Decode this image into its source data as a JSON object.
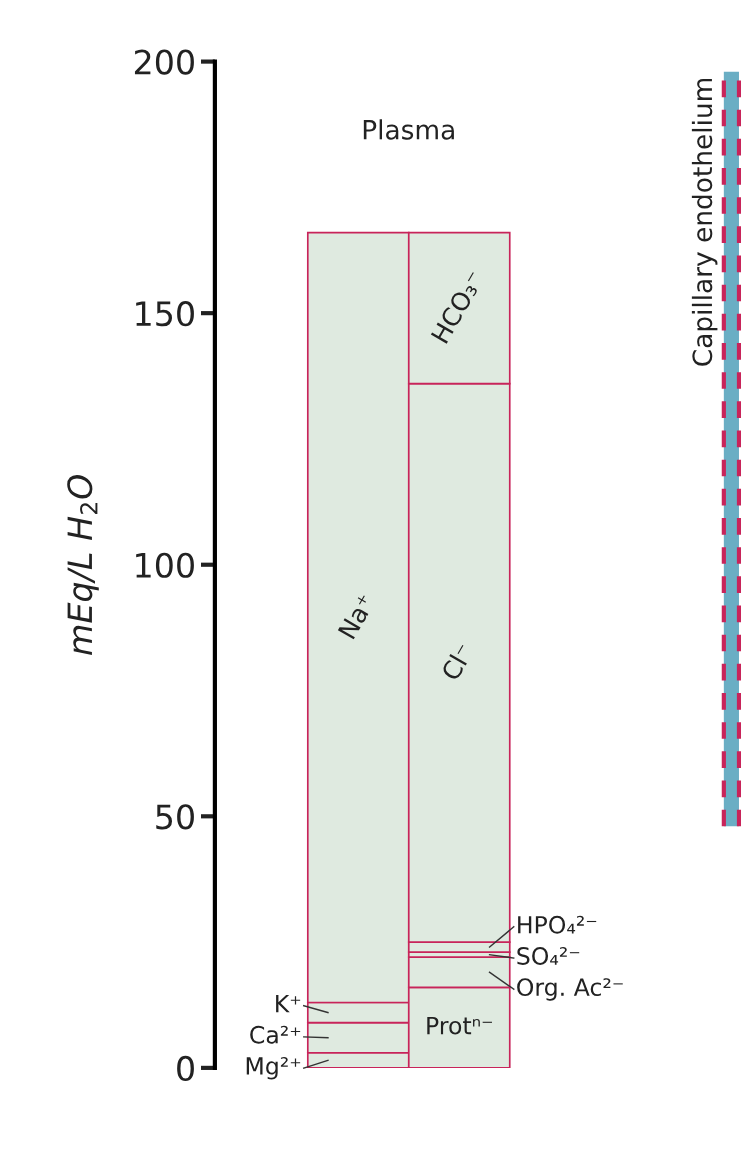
{
  "chart_data": {
    "type": "bar",
    "stacked": true,
    "title": "Plasma",
    "ylabel": "mEq/L H$_{2}$O",
    "categories": [
      null,
      null
    ],
    "series": [
      {
        "name": "Mg²⁺",
        "color": "#dfeae0",
        "values": [
          3,
          null
        ]
      },
      {
        "name": "Ca²⁺",
        "color": "#dfeae0",
        "values": [
          6,
          null
        ]
      },
      {
        "name": "K⁺",
        "color": "#dfeae0",
        "values": [
          4,
          null
        ]
      },
      {
        "name": "Na⁺",
        "color": "#dfeae0",
        "values": [
          153,
          null
        ]
      },
      {
        "name": "Protⁿ⁻",
        "color": "#dfeae0",
        "values": [
          null,
          16
        ]
      },
      {
        "name": "Org. Ac²⁻",
        "color": "#dfeae0",
        "values": [
          null,
          6
        ]
      },
      {
        "name": "SO₄²⁻",
        "color": "#dfeae0",
        "values": [
          null,
          1
        ]
      },
      {
        "name": "HPO₄²⁻",
        "color": "#dfeae0",
        "values": [
          null,
          2
        ]
      },
      {
        "name": "Cl⁻",
        "color": "#dfeae0",
        "values": [
          null,
          111
        ]
      },
      {
        "name": "HCO₃⁻",
        "color": "#dfeae0",
        "values": [
          null,
          30
        ]
      }
    ],
    "ylim": [
      0,
      200
    ],
    "yticks": [
      0,
      50,
      100,
      150,
      200
    ],
    "grid": false,
    "annotations": [
      "Capillary endothelium"
    ]
  }
}
